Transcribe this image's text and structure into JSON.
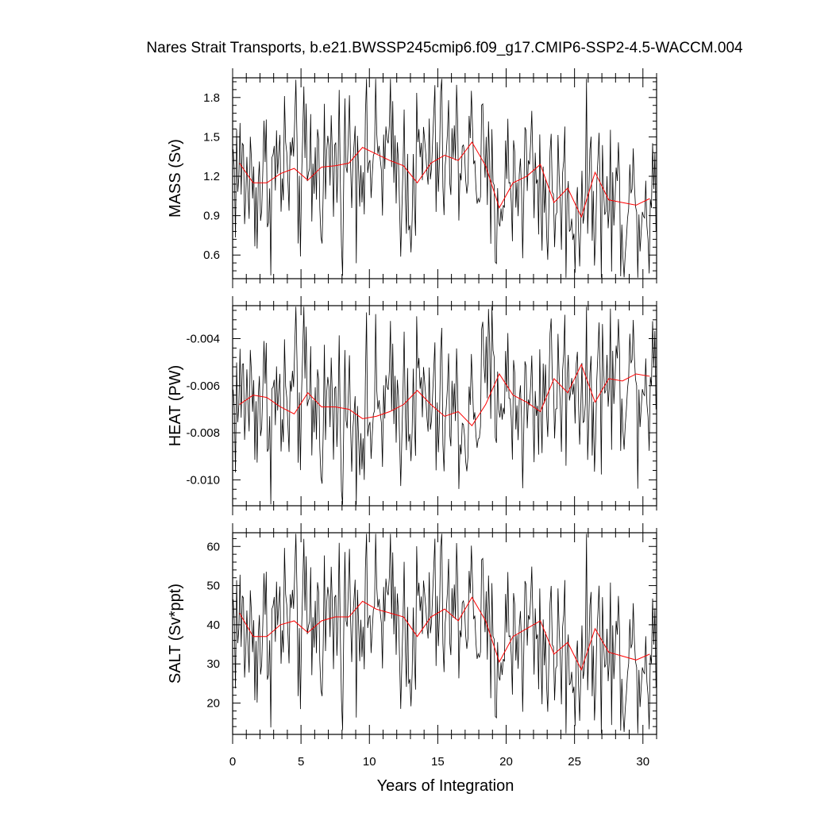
{
  "chart_data": {
    "type": "line",
    "title": "Nares Strait Transports, b.e21.BWSSP245cmip6.f09_g17.CMIP6-SSP2-4.5-WACCM.004",
    "xlabel": "Years of Integration",
    "xlim": [
      0,
      31
    ],
    "x_ticks": [
      "0",
      "5",
      "10",
      "15",
      "20",
      "25",
      "30"
    ],
    "line_colors": {
      "monthly": "#000000",
      "annual": "#ff0000"
    },
    "panels": [
      {
        "ylabel": "MASS (Sv)",
        "ylim": [
          0.42,
          1.95
        ],
        "y_ticks": [
          "0.6",
          "0.9",
          "1.2",
          "1.5",
          "1.8"
        ],
        "series": [
          {
            "values_annual": [
              1.3,
              1.15,
              1.15,
              1.22,
              1.26,
              1.17,
              1.27,
              1.28,
              1.3,
              1.42,
              1.37,
              1.32,
              1.28,
              1.15,
              1.3,
              1.36,
              1.32,
              1.46,
              1.28,
              0.96,
              1.15,
              1.2,
              1.29,
              1.0,
              1.11,
              0.89,
              1.23,
              1.02,
              1.0,
              0.98,
              1.03
            ]
          }
        ]
      },
      {
        "ylabel": "HEAT (PW)",
        "ylim": [
          -0.0111,
          -0.0026
        ],
        "y_ticks": [
          "-0.010",
          "-0.008",
          "-0.006",
          "-0.004"
        ],
        "series": [
          {
            "values_annual": [
              -0.0068,
              -0.0064,
              -0.0065,
              -0.0069,
              -0.0072,
              -0.0063,
              -0.0069,
              -0.0069,
              -0.007,
              -0.0074,
              -0.0073,
              -0.0071,
              -0.0068,
              -0.0062,
              -0.0068,
              -0.0073,
              -0.0071,
              -0.0077,
              -0.0068,
              -0.0055,
              -0.0064,
              -0.0067,
              -0.0071,
              -0.0057,
              -0.0063,
              -0.0051,
              -0.0067,
              -0.0057,
              -0.0058,
              -0.0055,
              -0.0056
            ]
          }
        ]
      },
      {
        "ylabel": "SALT (Sv*ppt)",
        "ylim": [
          12,
          63.5
        ],
        "y_ticks": [
          "20",
          "30",
          "40",
          "50",
          "60"
        ],
        "series": [
          {
            "values_annual": [
              43.0,
              37.0,
              37.0,
              40.0,
              41.0,
              38.0,
              41.0,
              42.0,
              42.0,
              46.0,
              44.0,
              43.0,
              42.0,
              37.0,
              42.0,
              44.0,
              41.0,
              47.0,
              41.0,
              30.5,
              37.0,
              39.0,
              41.0,
              32.5,
              35.5,
              28.5,
              39.0,
              33.0,
              32.0,
              31.0,
              32.5
            ]
          }
        ]
      }
    ]
  }
}
